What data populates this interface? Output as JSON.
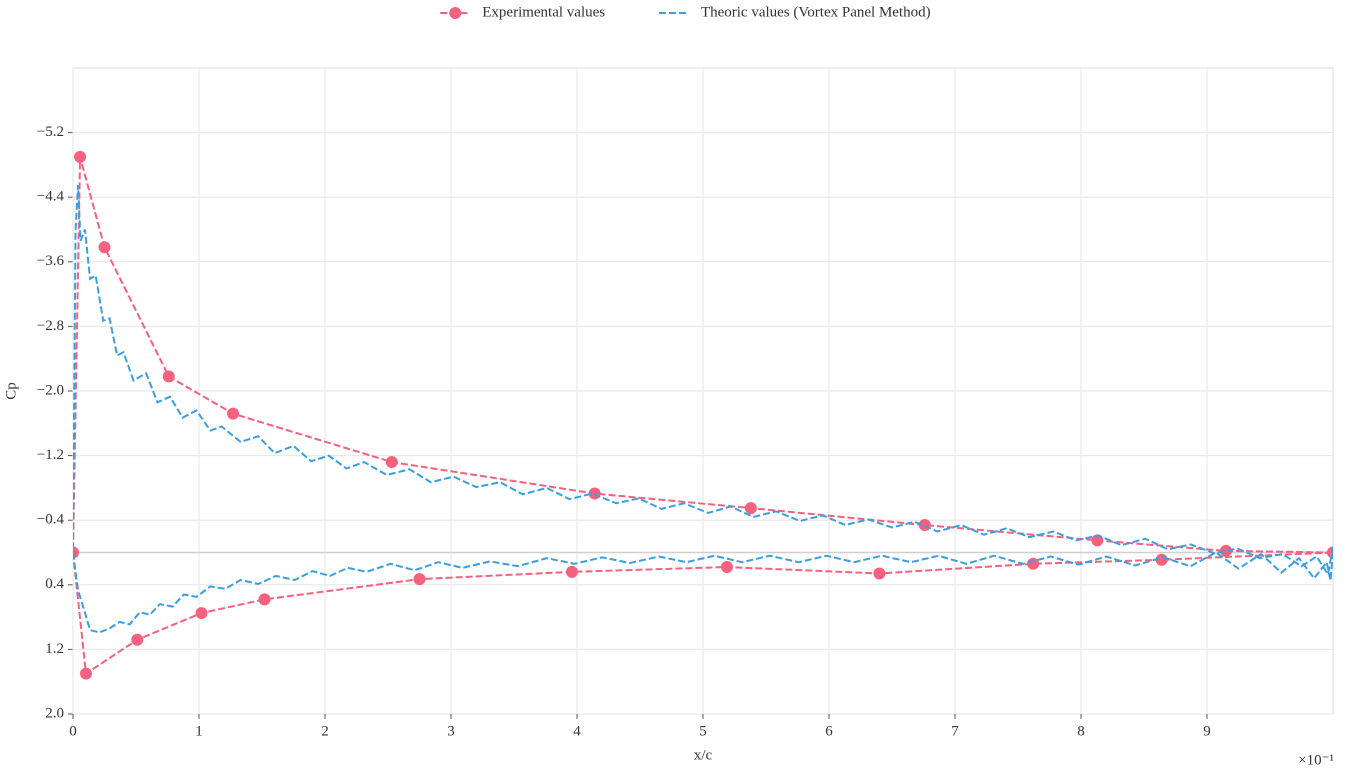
{
  "chart_data": {
    "type": "line",
    "xlabel": "x/c",
    "ylabel": "Cp",
    "x_offset_label": "×10⁻¹",
    "xlim": [
      0,
      1.0
    ],
    "ylim": [
      2.0,
      -6.0
    ],
    "xticks": [
      0,
      {
        "value": 0.1,
        "label": "1"
      },
      {
        "value": 0.2,
        "label": "2"
      },
      {
        "value": 0.3,
        "label": "3"
      },
      {
        "value": 0.4,
        "label": "4"
      },
      {
        "value": 0.5,
        "label": "5"
      },
      {
        "value": 0.6,
        "label": "6"
      },
      {
        "value": 0.7,
        "label": "7"
      },
      {
        "value": 0.8,
        "label": "8"
      },
      {
        "value": 0.9,
        "label": "9"
      }
    ],
    "yticks": [
      {
        "value": -5.2,
        "label": "−5.2"
      },
      {
        "value": -4.4,
        "label": "−4.4"
      },
      {
        "value": -3.6,
        "label": "−3.6"
      },
      {
        "value": -2.8,
        "label": "−2.8"
      },
      {
        "value": -2.0,
        "label": "−2.0"
      },
      {
        "value": -1.2,
        "label": "−1.2"
      },
      {
        "value": -0.4,
        "label": "−0.4"
      },
      0.4,
      1.2,
      {
        "value": 2.0,
        "label": "2.0"
      }
    ],
    "grid": true,
    "axhline": 0,
    "legend": "upper center",
    "series": [
      {
        "name": "Experimental values",
        "color": "#f5617f",
        "marker": true,
        "x": [
          1.0,
          0.915,
          0.813,
          0.676,
          0.538,
          0.414,
          0.253,
          0.127,
          0.076,
          0.025,
          0.0056,
          0,
          0.0103,
          0.051,
          0.102,
          0.152,
          0.275,
          0.396,
          0.519,
          0.64,
          0.762,
          0.864,
          1.0
        ],
        "values": [
          0.0,
          -0.02,
          -0.15,
          -0.34,
          -0.55,
          -0.73,
          -1.12,
          -1.72,
          -2.18,
          -3.78,
          -4.9,
          0.0,
          1.5,
          1.08,
          0.75,
          0.58,
          0.33,
          0.24,
          0.18,
          0.26,
          0.14,
          0.09,
          0.0
        ]
      },
      {
        "name": "Theoric values (Vortex Panel Method)",
        "color": "#3a9fe0",
        "marker": false,
        "x": [
          1.0,
          0.996,
          0.987,
          0.975,
          0.96,
          0.942,
          0.924,
          0.906,
          0.887,
          0.869,
          0.851,
          0.832,
          0.814,
          0.796,
          0.778,
          0.759,
          0.741,
          0.723,
          0.705,
          0.686,
          0.668,
          0.65,
          0.631,
          0.613,
          0.595,
          0.577,
          0.558,
          0.54,
          0.522,
          0.504,
          0.485,
          0.467,
          0.449,
          0.431,
          0.412,
          0.394,
          0.376,
          0.357,
          0.339,
          0.32,
          0.302,
          0.284,
          0.267,
          0.249,
          0.231,
          0.217,
          0.203,
          0.189,
          0.175,
          0.16,
          0.147,
          0.133,
          0.118,
          0.109,
          0.098,
          0.087,
          0.077,
          0.067,
          0.058,
          0.048,
          0.04,
          0.035,
          0.029,
          0.024,
          0.018,
          0.0135,
          0.0095,
          0.006,
          0.004,
          0.002,
          0,
          0.004,
          0.009,
          0.0135,
          0.021,
          0.029,
          0.037,
          0.045,
          0.053,
          0.061,
          0.069,
          0.079,
          0.088,
          0.098,
          0.109,
          0.121,
          0.133,
          0.147,
          0.161,
          0.176,
          0.19,
          0.204,
          0.218,
          0.233,
          0.252,
          0.271,
          0.29,
          0.309,
          0.331,
          0.353,
          0.376,
          0.398,
          0.42,
          0.442,
          0.465,
          0.487,
          0.509,
          0.531,
          0.553,
          0.576,
          0.598,
          0.62,
          0.642,
          0.665,
          0.687,
          0.709,
          0.731,
          0.754,
          0.776,
          0.798,
          0.82,
          0.843,
          0.865,
          0.887,
          0.907,
          0.925,
          0.943,
          0.959,
          0.973,
          0.985,
          0.995,
          0.998,
          1.0
        ],
        "values": [
          -0.07,
          0.27,
          0.05,
          0.17,
          0.02,
          0.07,
          -0.05,
          0.01,
          -0.1,
          -0.04,
          -0.17,
          -0.09,
          -0.21,
          -0.15,
          -0.26,
          -0.19,
          -0.3,
          -0.22,
          -0.34,
          -0.26,
          -0.38,
          -0.31,
          -0.41,
          -0.34,
          -0.46,
          -0.39,
          -0.51,
          -0.44,
          -0.57,
          -0.49,
          -0.61,
          -0.54,
          -0.67,
          -0.61,
          -0.73,
          -0.66,
          -0.8,
          -0.72,
          -0.87,
          -0.81,
          -0.94,
          -0.87,
          -1.03,
          -0.96,
          -1.12,
          -1.04,
          -1.2,
          -1.13,
          -1.32,
          -1.23,
          -1.44,
          -1.37,
          -1.56,
          -1.51,
          -1.76,
          -1.67,
          -1.93,
          -1.86,
          -2.22,
          -2.13,
          -2.48,
          -2.44,
          -2.9,
          -2.87,
          -3.43,
          -3.39,
          -4.0,
          -3.86,
          -4.55,
          -3.99,
          0.0,
          0.47,
          0.72,
          0.96,
          0.99,
          0.94,
          0.86,
          0.89,
          0.74,
          0.77,
          0.64,
          0.67,
          0.52,
          0.55,
          0.42,
          0.45,
          0.34,
          0.39,
          0.29,
          0.34,
          0.23,
          0.29,
          0.19,
          0.24,
          0.14,
          0.22,
          0.12,
          0.19,
          0.11,
          0.17,
          0.07,
          0.14,
          0.06,
          0.13,
          0.05,
          0.12,
          0.04,
          0.12,
          0.04,
          0.12,
          0.04,
          0.12,
          0.04,
          0.12,
          0.04,
          0.14,
          0.04,
          0.14,
          0.05,
          0.15,
          0.05,
          0.16,
          0.06,
          0.17,
          0.0,
          0.2,
          0.02,
          0.25,
          0.07,
          0.32,
          0.12,
          0.35,
          -0.02
        ]
      }
    ]
  }
}
